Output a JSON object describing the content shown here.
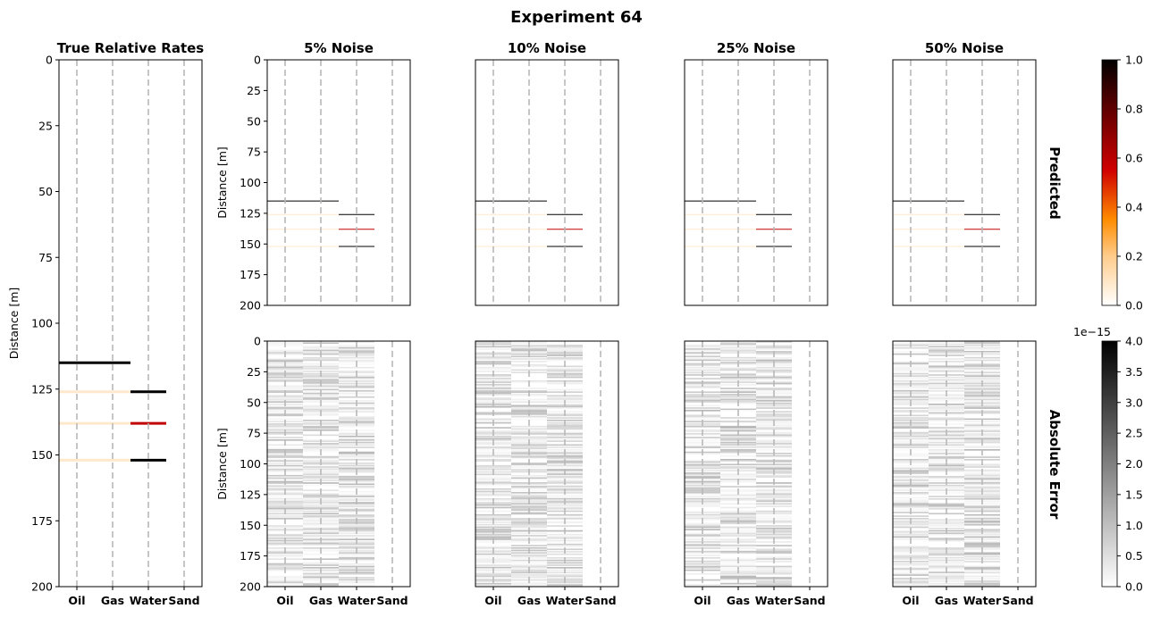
{
  "suptitle": "Experiment 64",
  "row_labels": {
    "predicted": "Predicted",
    "error": "Absolute Error"
  },
  "colors": {
    "dashed_lines": "#b8b8b8",
    "frame": "#000000",
    "heat_light": "#ffe8cc",
    "heat_mid": "#ff8c00",
    "heat_red": "#c00000",
    "heat_dark": "#000000"
  },
  "chart_data": [
    {
      "id": "true",
      "type": "heatmap",
      "title": "True Relative Rates",
      "ylabel": "Distance [m]",
      "ylim": [
        200,
        0
      ],
      "yticks": [
        0,
        25,
        50,
        75,
        100,
        125,
        150,
        175,
        200
      ],
      "categories": [
        "Oil",
        "Gas",
        "Water",
        "Sand"
      ],
      "segments": [
        {
          "depth": 115,
          "from": "Oil",
          "to": "Gas",
          "value": 1.0
        },
        {
          "depth": 126,
          "from": "Oil",
          "to": "Gas",
          "value": 0.12
        },
        {
          "depth": 126,
          "from": "Water",
          "to": "Water",
          "value": 1.0
        },
        {
          "depth": 138,
          "from": "Oil",
          "to": "Gas",
          "value": 0.12
        },
        {
          "depth": 138,
          "from": "Water",
          "to": "Water",
          "value": 0.5
        },
        {
          "depth": 152,
          "from": "Oil",
          "to": "Gas",
          "value": 0.12
        },
        {
          "depth": 152,
          "from": "Water",
          "to": "Water",
          "value": 1.0
        }
      ]
    },
    {
      "id": "pred",
      "type": "heatmap",
      "row": "Predicted",
      "panels": [
        "5% Noise",
        "10% Noise",
        "25% Noise",
        "50% Noise"
      ],
      "ylabel": "Distance [m]",
      "ylim": [
        200,
        0
      ],
      "yticks": [
        0,
        25,
        50,
        75,
        100,
        125,
        150,
        175,
        200
      ],
      "categories": [
        "Oil",
        "Gas",
        "Water",
        "Sand"
      ],
      "segments": [
        {
          "depth": 115,
          "from": "Oil",
          "to": "Gas",
          "value": 1.0
        },
        {
          "depth": 126,
          "from": "Oil",
          "to": "Gas",
          "value": 0.12
        },
        {
          "depth": 126,
          "from": "Water",
          "to": "Water",
          "value": 1.0
        },
        {
          "depth": 138,
          "from": "Oil",
          "to": "Gas",
          "value": 0.12
        },
        {
          "depth": 138,
          "from": "Water",
          "to": "Water",
          "value": 0.5
        },
        {
          "depth": 152,
          "from": "Oil",
          "to": "Gas",
          "value": 0.12
        },
        {
          "depth": 152,
          "from": "Water",
          "to": "Water",
          "value": 1.0
        }
      ],
      "colorbar": {
        "range": [
          0,
          1
        ],
        "ticks": [
          "0.0",
          "0.2",
          "0.4",
          "0.6",
          "0.8",
          "1.0"
        ],
        "colormap": "white-orange-red-black"
      }
    },
    {
      "id": "err",
      "type": "heatmap",
      "row": "Absolute Error",
      "panels": [
        "5% Noise",
        "10% Noise",
        "25% Noise",
        "50% Noise"
      ],
      "ylabel": "Distance [m]",
      "ylim": [
        200,
        0
      ],
      "yticks": [
        0,
        25,
        50,
        75,
        100,
        125,
        150,
        175,
        200
      ],
      "categories": [
        "Oil",
        "Gas",
        "Water",
        "Sand"
      ],
      "error_range": [
        0,
        4e-15
      ],
      "active_columns": [
        "Oil",
        "Gas",
        "Water"
      ],
      "colorbar": {
        "range": [
          0,
          4
        ],
        "ticks": [
          "0.0",
          "0.5",
          "1.0",
          "1.5",
          "2.0",
          "2.5",
          "3.0",
          "3.5",
          "4.0"
        ],
        "multiplier": "1e−15",
        "colormap": "white-gray-black"
      }
    }
  ]
}
